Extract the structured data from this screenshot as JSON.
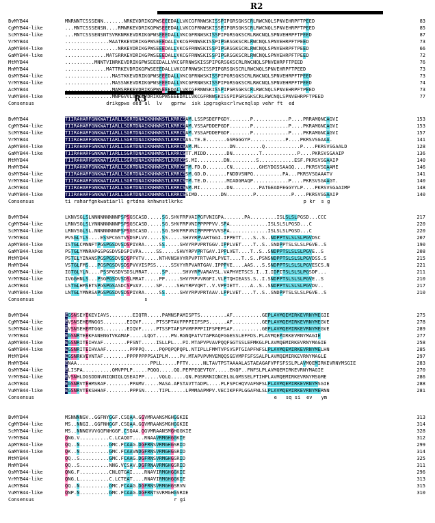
{
  "domain": "Diagram",
  "region_labels": [
    {
      "id": "r2",
      "text": "R2"
    },
    {
      "id": "r3",
      "text": "R3"
    }
  ],
  "colors": {
    "identical": "#0b0b4d",
    "high": "#ff7fb8",
    "similar": "#6fe3ee"
  },
  "blocks": [
    {
      "rows": [
        {
          "name": "BvMYB44",
          "seq": "MNRNNTCSSSENN.......NRKEVDRIKGPWSEEEDALLVKCGFRNWSKISSPIPGRSGKSCRLRWCNQLSPNVEHRPFTPEED",
          "num": "83"
        },
        {
          "name": "CgMYB44-like",
          "seq": "...MNTCSSSENSN....RMNRKEVDRIKGPWSEEEDALLVKCGFRNWSKISSPIPGRSGKSCRLRWCNQLSPNVEHRPFTPEED",
          "num": "85"
        },
        {
          "name": "ScMYB44-like",
          "seq": "...MNTCSSSENSNTSVRKNRKEVDRIKGPWSEEEDALLVKCGFRNWSKISSPIPGRSGKSCRLRWCNQLSPNVEHRPFTPEED",
          "num": "87"
        },
        {
          "name": "VrMYB44",
          "seq": "...............MAATRKEVDRIKGPWSEEEDALLVKCGFRNWSKISSPIPGRSGKSCRLRWCNQLSPNVEHRPFTPEED",
          "num": "73"
        },
        {
          "name": "ApMYB44-like",
          "seq": "..................NRKEVDRIKGPWSEEEDALLVKCGFRNWSKISSPIPGRSGKSCRLRWCNQLSPNVEHRPFTPEED",
          "num": "66"
        },
        {
          "name": "GaMYB44-like",
          "seq": "..............MATSRRKEVDRIKGPWSEEEDALLVKCGFRNWSKISSPIPGRSGKSCRLRWCNQLSPNVEHRPFTPEED",
          "num": "72"
        },
        {
          "name": "MtMYB44",
          "seq": "..........MNNTVINRKEVDRIKGPWSEEEDALLVKCGFRNWSKISSPIPGRSGKSCRLRWCNQLSPNVEHRPFTPEED",
          "num": "76"
        },
        {
          "name": "MnMYB44",
          "seq": "..............MATTRKEVDRIKGPWSEEEDALLVKCGFRNWSKISSPIPGRSGKSCRLRWCNQLSPNVEHRPFTPEED",
          "num": "73"
        },
        {
          "name": "QsMYB44-like",
          "seq": "................MASTKKEVDRIKGPWSEEEDALLVKCGFRNWSKISSPIPGRSGKSCRLRWCNQLSPNVEHRPFTPEED",
          "num": "73"
        },
        {
          "name": "VrMYB44-like",
          "seq": "................MASSNKEVDRIKGPWSEEEDALLVKCGFRNWSKISSPIPGRSGKSCRLRWCNQLSPNVEHRPFTPEED",
          "num": "74"
        },
        {
          "name": "AcMYB44",
          "seq": "................MAMSRRKEVDRIKGPWSEEEDALLVKCGFRNWSKISSPIPGRSGKSCRLRWCNQLSPNVEHRPFTPEED",
          "num": "73"
        },
        {
          "name": "VuMYB44-like",
          "seq": "................MNPGVVLSRKEVDRIKGPWSEEEDALLVKCGFRNWSKISSPIPGRSGKSCRLRWCNQLSPNVEHRPFTPEED",
          "num": "77"
        }
      ],
      "consensus": "              drikgpws eed al  lv   gprnw  isk ipgrsgkscrlrwcnqlsp vehr ft  ed"
    },
    {
      "rows": [
        {
          "name": "BvMYB44",
          "seq": "TIIRAHARFGNKWATIARLLSGRTDNAIKNHWNSTLKRRCSAM.LSSPSDEFPGDY.......P............P....PRRAMQNCAGVI",
          "num": "153"
        },
        {
          "name": "CgMYB44-like",
          "seq": "TIIRAHARFGNKWATIARLLSGRTDNAIKNHWNSTLKRRCSAM.VSSAFDDEPGDF.......P............P....PKRAMGNCAGVI",
          "num": "153"
        },
        {
          "name": "ScMYB44-like",
          "seq": "TIIRAHARFGNKWATIARLLSGRTDNAIKNHWNSTLKRRCSAM.VSSAFDDEPGDF.......P............P....PKRAMGNCAGVI",
          "num": "157"
        },
        {
          "name": "VrMYB44",
          "seq": "TIIRAHARFGNKWATIARLLSGRTDNAIKNHWNSTLKRRCSAS.TE.E.......GSRGGGYP............P....PKRSVSGAAA.",
          "num": "141"
        },
        {
          "name": "ApMYB44-like",
          "seq": "TIIRAHARFGNKWATIARLLSGRTDNAIKNHWNSTLKRRCSAM.ML..........DN.........Q............P....PKRSVSGAALD",
          "num": "128"
        },
        {
          "name": "GaMYB44-like",
          "seq": "TIIRAHARFGNKWATIARLLSGRTDNAIKNHWNSTLKRRCSTT.MIDD.......DN.........T............P....PKRSVSGAAIP",
          "num": "136"
        },
        {
          "name": "MtMYB44",
          "seq": "TIIRAHARFGNKWATIARLLSGRTDNAIKNHWNSTLKRRCSS.MI.........DN.........S............ESF.PKRSVSGAAIP",
          "num": "140"
        },
        {
          "name": "MnMYB44",
          "seq": "TIIRAHARFGNKWATIARLLSGRTDNAIKNHWNSTLKRRCSTM.FD.D.......CN.........GHSYDGSSAAGQ....PKRSVSGAAME",
          "num": "146"
        },
        {
          "name": "QsMYB44-like",
          "seq": "TIIRAHARFGNKWATIARLLSGRTDNAIKNHWNSTLKRRCSSM.GD.D.......FNDDVSNPQ..........PA...PKRSVSGAAATV",
          "num": "141"
        },
        {
          "name": "VrMYB44-like",
          "seq": "TIIRAHARFGNKWATIARLLSGRTDNAIKNHWNSTLKRRCSTM.TE.D.......MIADGMAQP............P....PKRSVSGAAGT.",
          "num": "140"
        },
        {
          "name": "AcMYB44",
          "seq": "TIIRAHARFGNKWATIARLLSGRTDNAIKNHWNSTLKRRCSSM.MI.........DN.........PATGEADFEGGYYLP....PKRSVSGAAIMP",
          "num": "148"
        },
        {
          "name": "VuMYB44-like",
          "seq": "TIIRAHARFGNKWATIARLLSGRTDNAIKNHWNSTLKRRCSSIMD........DN.........P............P....PKRSVSGAAIP",
          "num": "140"
        }
      ],
      "consensus": "ti raharfgnkwatiarll grtdna knhwnstlkrkc                                         p kr  s g"
    },
    {
      "rows": [
        {
          "name": "BvMYB44",
          "seq": "LKNVSGLSLNNNNNNNNNPSPSGSCASD.....SG.SHVFRPVAIPGFVNIGPA.......PA.........ISLSLSLPGSD...CCC",
          "num": "217"
        },
        {
          "name": "CgMYB44-like",
          "seq": "LRNVSGLSLYNNNNNNNNPSPSGSCASD.....SG.SHVFRPVNIPPPPPVV.SPA.............ISLSLSLPGSD...C",
          "num": "220"
        },
        {
          "name": "ScMYB44-like",
          "seq": "LRNVSGLSL.NNNNNNNNPSPSGSCASD.....SG.SHVFRPVNIPPPPPVVVSPA.............ISLSLSLPGSD...C",
          "num": "220"
        },
        {
          "name": "VrMYB44",
          "seq": "PVSGLYLS....ESSPCGSTVSDSPLVV.....SS.....SHVYRPVARTGGI.IPPETT....S..S..NDPPTSLSLSLPGVDSC",
          "num": "207"
        },
        {
          "name": "ApMYB44-like",
          "seq": "ISTGLCMNNFTPGSPGSDVSDSPIVRA.....SS.....SHVYRPVPRTGGV.IPPLVET....T..S..SNDPPTSLSLSLPGVE..S",
          "num": "190"
        },
        {
          "name": "GaMYB44-like",
          "seq": "PSTGLYMNRAPGSPGSDVSDSPIVPA.....SS.....SHVYRPVPRTGAV.IPPLVET....T..S..SNDPPTSLSLSLPGVE..S",
          "num": "208"
        },
        {
          "name": "MtMYB44",
          "seq": "PSTELYINANSPGSPGSDVSDSPFVTV.....NTHVNSHVYRPVPTRTVAPLPVET....T..S..PSNSNDPPTSLSLSLPGVDSS.S",
          "num": "215"
        },
        {
          "name": "MnMYB44",
          "seq": "VSTGLFMS...PGSPGSDVSDSPVVVISPSS.....SSVYYRPVARTGAV.IPPPVE....AAS...S.SNDPPTSLSLSLPGVESCS.N",
          "num": "221"
        },
        {
          "name": "QsMYB44-like",
          "seq": "IGTGLYLN....PSSPGSDVSDSLMRAT.....SP.....SHVYRPVARAVSL.VAPHVETSCS.I..I.IDPITSLSLSLPGSDF...",
          "num": "211"
        },
        {
          "name": "VrMYB44-like",
          "seq": "IVGGHNLS...PSGPGSDVSDSLMRAT.....PP.....SHVYRPVVRGFI.VLPTQHIEASS.S..I.SNDPPTSLSLSLPGVE..S",
          "num": "210"
        },
        {
          "name": "AcMYB44",
          "seq": "LSTGLHMSETSPGSPGSASDCSPVAV.....SP.....SHVYRPVQRT..V.VPPIETT....A..S..SNDPPTSLSLSLPGVDV..",
          "num": "217"
        },
        {
          "name": "VuMYB44-like",
          "seq": "LNTGLYMNRSAPGSPGSDVSDSPIVRA.....SS.....SHVYRPVPRTAAV.LPPLVET....T..S..SNDPPTSLSLSLPGVE..S",
          "num": "210"
        }
      ],
      "consensus": "                           s"
    },
    {
      "rows": [
        {
          "name": "BvMYB44",
          "seq": "EGSNSEYEKEVIAVS........EIQTR.....PAMNSPAMISPTS.........AF..........GEPLAVMQEMIRKEVRNYMEGIE",
          "num": "275"
        },
        {
          "name": "CgMYB44-like",
          "seq": "EVSNSEHEMNGGS........EIQVF.....PTSSPTAVFPPPIIFSPS......AF..........GEPLAVMQEMIRKEVRNYMEGVE",
          "num": "278"
        },
        {
          "name": "ScMYB44-like",
          "seq": "EVSNSEHEMTGGS........EIQVF.....PTSSPTAFSPVMFPPPIIFSPEPSAF..........GEPLAVMQEMIRKEVRNYMEGVE",
          "num": "289"
        },
        {
          "name": "VrMYB44",
          "seq": "EGSNRTEEKFANENGTVKAMAF.....LQGT.....PN.RGNQFATVTAPRAQFGGESSLEFFDS.PLAVMQEMIRKEVRNYMAGIE",
          "num": "277"
        },
        {
          "name": "ApMYB44-like",
          "seq": "EGSNRITEIHVAF........PFSNT.....ISLLPL...PI.MTAPVPVAVPQQFGGTSSLEFMKGLPLAVMQEMIRKEVRNYMAGIE",
          "num": "258"
        },
        {
          "name": "GaMYB44-like",
          "seq": "EGSNRITEIHVAAF........PPPPQ.....PQPQPQPQPL.NTIPLLFMMTVPSVSPTGIAPFNFSLPLAVMQEMIRKEVRNYMELHN",
          "num": "285"
        },
        {
          "name": "MtMYB44",
          "seq": "EGSNRKVEVNTAF........PPPPPPPPSAIPLM....PV.MTAPVPVMVEMQQSGSVMPFSFSSALPLAVMQEMIRKEVRNYMAGLE",
          "num": "297"
        },
        {
          "name": "MnMYB44",
          "seq": "ENAA.........................PPLL.....PFTV.....NLTAVTPSTAAAALASTAEAGAFVPFSFSSLPLAVMQEMIRKEVRNYMSGIE",
          "num": "283"
        },
        {
          "name": "QsMYB44-like",
          "seq": "ELISPA..........QMVPPLP.....PQQQ.....QQ.PEPPEQEVTGY.....EKQF..FNFSLPLAVMQEMIRKEVRNYMAGIE",
          "num": "270"
        },
        {
          "name": "VrMYB44-like",
          "seq": "EVSNHLDGSDDNVNIQNIQLQSEAIPP.....VQLQ.....QN.PGSRRNIQNCELGLGMSSELFTIHPLAVMQEMIRKEVRNYMSGME",
          "num": "286"
        },
        {
          "name": "AcMYB44",
          "seq": "EGSNRVTEHMSRAF........PPAMV.....MASA.APSTAVTTADPL....PLFSPCHQVVAFNFSLPLAVMQEMIRKEVRNYMSGIE",
          "num": "288"
        },
        {
          "name": "VuMYB44-like",
          "seq": "EGSNRVTEKSHHAF........PPPSN.....TIPL.....LPMMAAPMPV.VECIKPFPLGGAFNLSLPLAVMQEMIRKEVRNYMERNN",
          "num": "281"
        }
      ],
      "consensus": "                                                                       e   sq si  ev   ym"
    },
    {
      "rows": [
        {
          "name": "BvMYB44",
          "seq": "MSNNNNGV..GGFNYGGF.CSQAA.GGVMRAANSMGHGGKIE",
          "num": "313"
        },
        {
          "name": "CgMYB44-like",
          "seq": "MS..NNGI..GGFNHGGF.CSQAA.GGVMRAANSMGHGGKIE",
          "num": "314"
        },
        {
          "name": "ScMYB44-like",
          "seq": "MS..NNNGVVVGGFNHGGF.CSQAA.GGVMRAANSMGHGGKIE",
          "num": "328"
        },
        {
          "name": "VrMYB44",
          "seq": "QNG.V..........C.LCAQGT....RNAAVRMGHGGKIE",
          "num": "312"
        },
        {
          "name": "ApMYB44-like",
          "seq": "QQ..N..........GMC.FCAAG.DGFRNSVRMGHGSRID",
          "num": "299"
        },
        {
          "name": "GaMYB44-like",
          "seq": "QK..N..........GMC.FCAAVNDGFRNSVRMGHGSRID",
          "num": "314"
        },
        {
          "name": "MtMYB44",
          "seq": "QQ..S..........GMC.FCAAG.DGFRNSVRMGHGSRID",
          "num": "325"
        },
        {
          "name": "MnMYB44",
          "seq": "QQ..S..........NNG.VCSAV.DGFRNAVRMGHGSRID",
          "num": "311"
        },
        {
          "name": "QsMYB44-like",
          "seq": "QNG.F..........CNLQTGAI....RNAVIRMGHGGKIE",
          "num": "296"
        },
        {
          "name": "VrMYB44-like",
          "seq": "QNG.L..........C.LCTEAT....RNAVIRMGHGGKIE",
          "num": "313"
        },
        {
          "name": "AcMYB44",
          "seq": "QQ..N..........GMC.FCAAG.DGFRNSVRMGHGSRVN",
          "num": "315"
        },
        {
          "name": "VuMYB44-like",
          "seq": "QNP.N..........GMC.FCAAG.DGFRNTSVRMGHGSRIE",
          "num": "310"
        }
      ],
      "consensus": "                                     r gi"
    }
  ],
  "consensus_label": "Consensus"
}
